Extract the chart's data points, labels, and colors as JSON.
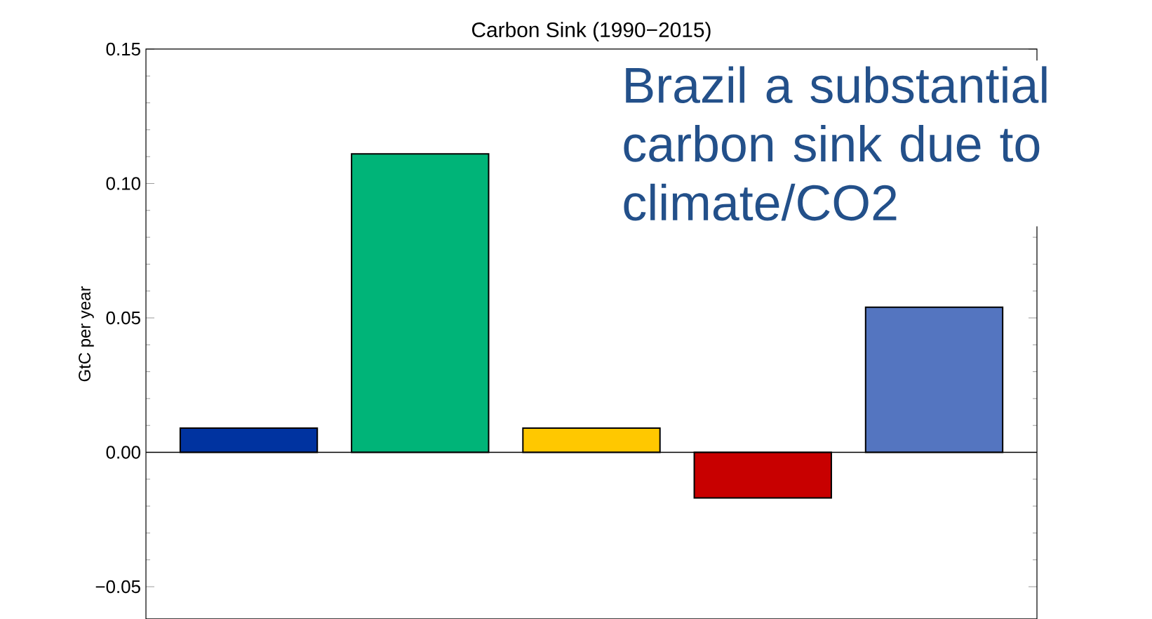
{
  "chart_data": {
    "type": "bar",
    "title": "Carbon Sink (1990−2015)",
    "ylabel": "GtC per year",
    "categories": [
      null,
      null,
      null,
      null,
      null
    ],
    "values": [
      0.009,
      0.111,
      0.009,
      -0.017,
      0.054
    ],
    "colors": [
      "#0033a0",
      "#00b478",
      "#ffc800",
      "#c80000",
      "#5475c0"
    ],
    "ylim": [
      -0.062,
      0.15
    ],
    "yticks": [
      {
        "value": -0.05,
        "label": "−0.05"
      },
      {
        "value": 0,
        "label": "0.00"
      },
      {
        "value": 0.05,
        "label": "0.05"
      },
      {
        "value": 0.1,
        "label": "0.10"
      },
      {
        "value": 0.15,
        "label": "0.15"
      }
    ],
    "annotations": [
      "Brazil a substantial carbon sink due to climate/CO2"
    ]
  }
}
